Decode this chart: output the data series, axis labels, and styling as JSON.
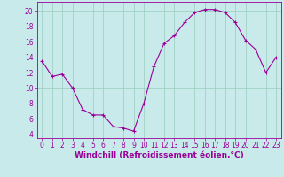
{
  "x": [
    0,
    1,
    2,
    3,
    4,
    5,
    6,
    7,
    8,
    9,
    10,
    11,
    12,
    13,
    14,
    15,
    16,
    17,
    18,
    19,
    20,
    21,
    22,
    23
  ],
  "y": [
    13.5,
    11.5,
    11.8,
    10.0,
    7.2,
    6.5,
    6.5,
    5.0,
    4.8,
    4.4,
    8.0,
    12.8,
    15.8,
    16.8,
    18.5,
    19.8,
    20.2,
    20.2,
    19.8,
    18.5,
    16.2,
    15.0,
    12.0,
    14.0
  ],
  "line_color": "#990099",
  "marker": "+",
  "marker_size": 3,
  "marker_linewidth": 0.8,
  "linewidth": 0.8,
  "background_color": "#c8eaea",
  "grid_color": "#99ccbb",
  "xlabel": "Windchill (Refroidissement éolien,°C)",
  "xlabel_color": "#990099",
  "xlabel_fontsize": 6.5,
  "yticks": [
    4,
    6,
    8,
    10,
    12,
    14,
    16,
    18,
    20
  ],
  "xlim": [
    -0.5,
    23.5
  ],
  "ylim": [
    3.5,
    21.2
  ],
  "tick_fontsize": 5.5,
  "axis_color": "#990099"
}
